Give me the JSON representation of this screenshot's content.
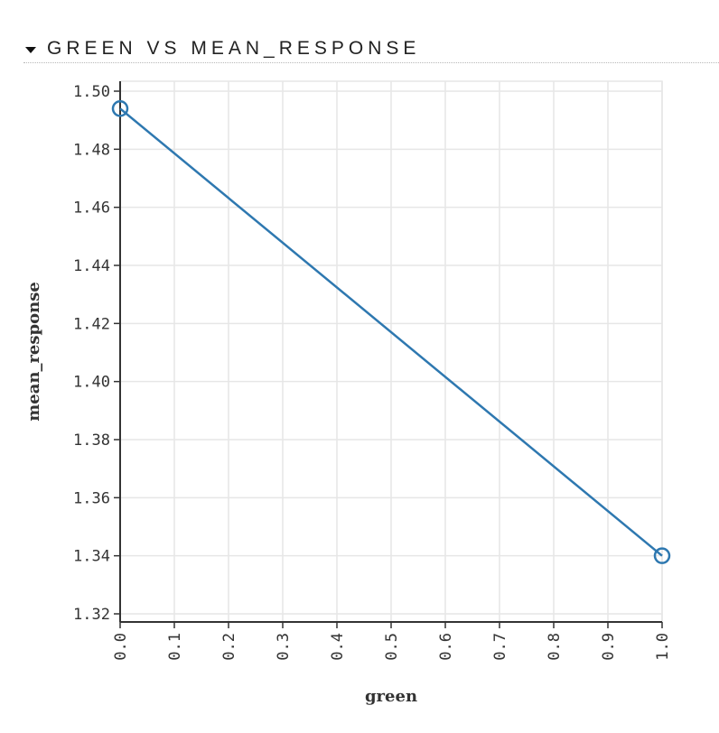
{
  "section": {
    "title": "GREEN VS MEAN_RESPONSE",
    "toggle_icon": "caret-down-icon"
  },
  "colors": {
    "line": "#2e78b0",
    "grid": "#e6e6e6",
    "axis": "#333333"
  },
  "chart_data": {
    "type": "line",
    "title": "",
    "xlabel": "green",
    "ylabel": "mean_response",
    "xlim": [
      0.0,
      1.0
    ],
    "ylim": [
      1.32,
      1.5
    ],
    "xticks": [
      "0.0",
      "0.1",
      "0.2",
      "0.3",
      "0.4",
      "0.5",
      "0.6",
      "0.7",
      "0.8",
      "0.9",
      "1.0"
    ],
    "yticks": [
      "1.32",
      "1.34",
      "1.36",
      "1.38",
      "1.40",
      "1.42",
      "1.44",
      "1.46",
      "1.48",
      "1.50"
    ],
    "grid": true,
    "series": [
      {
        "x": [
          0.0,
          1.0
        ],
        "y": [
          1.494,
          1.34
        ],
        "markers": "open-circle"
      }
    ]
  }
}
